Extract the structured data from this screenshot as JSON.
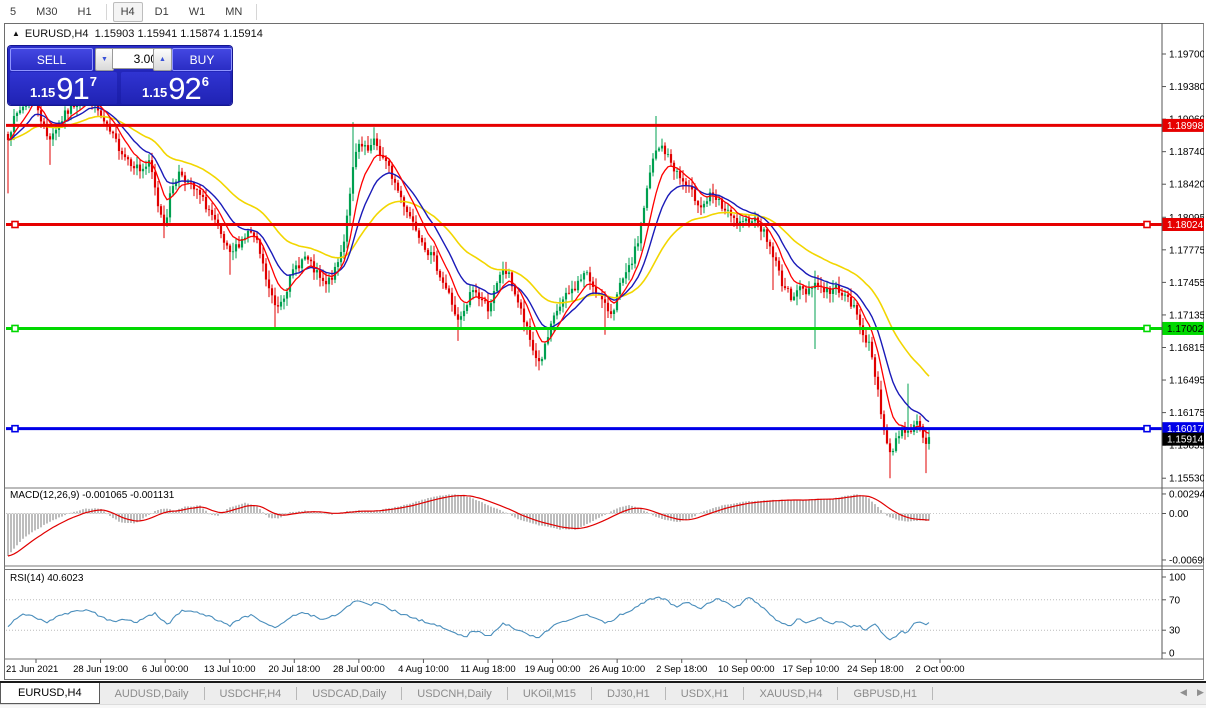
{
  "toolbar": {
    "groups": [
      [
        "5",
        "M30",
        "H1"
      ],
      [
        "H4",
        "D1",
        "W1",
        "MN"
      ]
    ],
    "selected": "H4"
  },
  "window": {
    "title_marker": "▲",
    "title_symbol": "EURUSD,H4",
    "title_ohlc": "1.15903 1.15941 1.15874 1.15914"
  },
  "trade_panel": {
    "sell_label": "SELL",
    "buy_label": "BUY",
    "volume": "3.00",
    "bid": {
      "small": "1.15",
      "big": "91",
      "sup": "7"
    },
    "ask": {
      "small": "1.15",
      "big": "92",
      "sup": "6"
    },
    "icons": {
      "spin_down": "▼",
      "spin_up": "▲"
    }
  },
  "tabs": {
    "active": "EURUSD,H4",
    "inactive": [
      "AUDUSD,Daily",
      "USDCHF,H4",
      "USDCAD,Daily",
      "USDCNH,Daily",
      "UKOil,M15",
      "DJ30,H1",
      "USDX,H1",
      "XAUUSD,H4",
      "GBPUSD,H1"
    ],
    "scroll_left_icon": "◀",
    "scroll_right_icon": "▶"
  },
  "price_axis": {
    "ticks": [
      "1.19700",
      "1.19380",
      "1.19060",
      "1.18740",
      "1.18420",
      "1.18095",
      "1.17775",
      "1.17455",
      "1.17135",
      "1.16815",
      "1.16495",
      "1.16175",
      "1.15855",
      "1.15530"
    ],
    "badges": [
      {
        "text": "1.18998",
        "price": 1.18998,
        "bg": "#e60000",
        "fg": "#ffffff"
      },
      {
        "text": "1.18024",
        "price": 1.18024,
        "bg": "#e60000",
        "fg": "#ffffff"
      },
      {
        "text": "1.17002",
        "price": 1.17002,
        "bg": "#00d800",
        "fg": "#000000"
      },
      {
        "text": "1.16017",
        "price": 1.16017,
        "bg": "#0000e8",
        "fg": "#ffffff"
      },
      {
        "text": "1.15914",
        "price": 1.15914,
        "bg": "#000000",
        "fg": "#ffffff"
      }
    ]
  },
  "macd_panel": {
    "label": "MACD(12,26,9) -0.001065 -0.001131",
    "axis": [
      "0.00294",
      "0.00",
      "-0.00699"
    ],
    "axis_values": [
      0.00294,
      0.0,
      -0.00699
    ]
  },
  "rsi_panel": {
    "label": "RSI(14) 40.6023",
    "axis": [
      "100",
      "70",
      "30",
      "0"
    ],
    "axis_values": [
      100,
      70,
      30,
      0
    ],
    "levels": [
      70,
      30
    ]
  },
  "time_axis": {
    "labels": [
      "21 Jun 2021",
      "28 Jun 19:00",
      "6 Jul 00:00",
      "13 Jul 10:00",
      "20 Jul 18:00",
      "28 Jul 00:00",
      "4 Aug 10:00",
      "11 Aug 18:00",
      "19 Aug 00:00",
      "26 Aug 10:00",
      "2 Sep 18:00",
      "10 Sep 00:00",
      "17 Sep 10:00",
      "24 Sep 18:00",
      "2 Oct 00:00"
    ]
  },
  "chart_data": {
    "type": "candlestick",
    "symbol": "EURUSD",
    "timeframe": "H4",
    "current_ohlc": {
      "open": 1.15903,
      "high": 1.15941,
      "low": 1.15874,
      "close": 1.15914
    },
    "y_range": [
      1.15443,
      1.19926
    ],
    "horizontal_lines": [
      {
        "price": 1.18998,
        "color": "#e60000",
        "width": 3,
        "handles": []
      },
      {
        "price": 1.18024,
        "color": "#e60000",
        "width": 3,
        "handles": [
          "left",
          "right"
        ]
      },
      {
        "price": 1.17002,
        "color": "#00d800",
        "width": 3,
        "handles": [
          "left",
          "right"
        ]
      },
      {
        "price": 1.16017,
        "color": "#0000e8",
        "width": 3,
        "handles": [
          "left",
          "right"
        ]
      }
    ],
    "colors": {
      "bull": "#00a050",
      "bear": "#e00000",
      "ma_fast": "#ff0000",
      "ma_mid": "#1a1ab8",
      "ma_slow": "#f2d600",
      "macd_hist": "#bdbdbd",
      "macd_signal": "#e00000",
      "rsi": "#4a8ebc"
    },
    "moving_average_periods": {
      "fast": 8,
      "mid": 16,
      "slow": 40
    },
    "close_path": [
      [
        0,
        1.1915
      ],
      [
        8,
        1.189
      ],
      [
        15,
        1.1907
      ],
      [
        25,
        1.1922
      ],
      [
        32,
        1.1938
      ],
      [
        40,
        1.191
      ],
      [
        48,
        1.1886
      ],
      [
        55,
        1.1896
      ],
      [
        65,
        1.191
      ],
      [
        75,
        1.1922
      ],
      [
        88,
        1.193
      ],
      [
        95,
        1.192
      ],
      [
        105,
        1.19
      ],
      [
        115,
        1.1885
      ],
      [
        125,
        1.187
      ],
      [
        140,
        1.1856
      ],
      [
        150,
        1.1862
      ],
      [
        158,
        1.1822
      ],
      [
        165,
        1.1802
      ],
      [
        172,
        1.184
      ],
      [
        180,
        1.1855
      ],
      [
        190,
        1.1841
      ],
      [
        200,
        1.183
      ],
      [
        210,
        1.1815
      ],
      [
        220,
        1.1792
      ],
      [
        230,
        1.1771
      ],
      [
        240,
        1.1786
      ],
      [
        250,
        1.1796
      ],
      [
        258,
        1.1781
      ],
      [
        268,
        1.1741
      ],
      [
        276,
        1.172
      ],
      [
        285,
        1.1736
      ],
      [
        295,
        1.176
      ],
      [
        305,
        1.177
      ],
      [
        315,
        1.1756
      ],
      [
        325,
        1.1741
      ],
      [
        335,
        1.1756
      ],
      [
        343,
        1.1781
      ],
      [
        352,
        1.1851
      ],
      [
        358,
        1.188
      ],
      [
        368,
        1.1874
      ],
      [
        375,
        1.1884
      ],
      [
        382,
        1.1869
      ],
      [
        390,
        1.1855
      ],
      [
        400,
        1.1831
      ],
      [
        410,
        1.1811
      ],
      [
        418,
        1.1796
      ],
      [
        428,
        1.1776
      ],
      [
        435,
        1.1766
      ],
      [
        443,
        1.1746
      ],
      [
        450,
        1.1731
      ],
      [
        458,
        1.1706
      ],
      [
        465,
        1.1716
      ],
      [
        472,
        1.174
      ],
      [
        480,
        1.173
      ],
      [
        488,
        1.1721
      ],
      [
        495,
        1.1736
      ],
      [
        503,
        1.1759
      ],
      [
        510,
        1.175
      ],
      [
        518,
        1.1726
      ],
      [
        526,
        1.1701
      ],
      [
        534,
        1.1676
      ],
      [
        540,
        1.1666
      ],
      [
        548,
        1.1691
      ],
      [
        556,
        1.1716
      ],
      [
        565,
        1.173
      ],
      [
        575,
        1.1741
      ],
      [
        585,
        1.1755
      ],
      [
        595,
        1.174
      ],
      [
        605,
        1.1721
      ],
      [
        612,
        1.1716
      ],
      [
        620,
        1.1741
      ],
      [
        630,
        1.176
      ],
      [
        638,
        1.1786
      ],
      [
        646,
        1.1831
      ],
      [
        654,
        1.1871
      ],
      [
        662,
        1.1879
      ],
      [
        670,
        1.1865
      ],
      [
        678,
        1.1851
      ],
      [
        686,
        1.184
      ],
      [
        694,
        1.183
      ],
      [
        702,
        1.182
      ],
      [
        710,
        1.183
      ],
      [
        718,
        1.1825
      ],
      [
        726,
        1.1815
      ],
      [
        734,
        1.1806
      ],
      [
        742,
        1.18
      ],
      [
        750,
        1.181
      ],
      [
        758,
        1.1805
      ],
      [
        766,
        1.179
      ],
      [
        774,
        1.177
      ],
      [
        782,
        1.1746
      ],
      [
        790,
        1.1731
      ],
      [
        798,
        1.174
      ],
      [
        806,
        1.1736
      ],
      [
        814,
        1.1746
      ],
      [
        822,
        1.174
      ],
      [
        830,
        1.1736
      ],
      [
        838,
        1.1741
      ],
      [
        846,
        1.173
      ],
      [
        854,
        1.172
      ],
      [
        862,
        1.17
      ],
      [
        870,
        1.168
      ],
      [
        878,
        1.164
      ],
      [
        884,
        1.16
      ],
      [
        890,
        1.1576
      ],
      [
        896,
        1.159
      ],
      [
        902,
        1.1605
      ],
      [
        908,
        1.1596
      ],
      [
        914,
        1.161
      ],
      [
        920,
        1.16
      ],
      [
        926,
        1.1586
      ],
      [
        929,
        1.15914
      ]
    ],
    "wick_spikes": [
      {
        "x": 8,
        "low": 1.1833
      },
      {
        "x": 50,
        "low": 1.1861
      },
      {
        "x": 165,
        "low": 1.1789
      },
      {
        "x": 230,
        "low": 1.1753
      },
      {
        "x": 276,
        "low": 1.1701
      },
      {
        "x": 352,
        "high": 1.1903
      },
      {
        "x": 375,
        "high": 1.1898
      },
      {
        "x": 458,
        "low": 1.1688
      },
      {
        "x": 540,
        "low": 1.1659
      },
      {
        "x": 605,
        "low": 1.1694
      },
      {
        "x": 657,
        "high": 1.1909
      },
      {
        "x": 774,
        "low": 1.1738
      },
      {
        "x": 814,
        "low": 1.168
      },
      {
        "x": 814,
        "high": 1.1757
      },
      {
        "x": 890,
        "low": 1.1553
      },
      {
        "x": 908,
        "high": 1.1646
      },
      {
        "x": 926,
        "low": 1.1558
      }
    ],
    "macd_path": [
      [
        0,
        -0.0078
      ],
      [
        10,
        -0.006
      ],
      [
        25,
        -0.0035
      ],
      [
        50,
        -0.0012
      ],
      [
        69,
        0
      ],
      [
        85,
        0.0007
      ],
      [
        100,
        0.0008
      ],
      [
        108,
        -0.0002
      ],
      [
        120,
        -0.0013
      ],
      [
        135,
        -0.0015
      ],
      [
        146,
        -0.0005
      ],
      [
        155,
        0.0004
      ],
      [
        165,
        0.0008
      ],
      [
        175,
        0.0004
      ],
      [
        185,
        0.001
      ],
      [
        200,
        0.0012
      ],
      [
        210,
        -0.0002
      ],
      [
        218,
        -0.0004
      ],
      [
        228,
        0.0008
      ],
      [
        245,
        0.0016
      ],
      [
        258,
        0.001
      ],
      [
        268,
        -0.0006
      ],
      [
        278,
        -0.0008
      ],
      [
        290,
        0.0002
      ],
      [
        305,
        0.0004
      ],
      [
        320,
        0.0002
      ],
      [
        330,
        -0.0002
      ],
      [
        345,
        0.0003
      ],
      [
        360,
        0.0005
      ],
      [
        375,
        0.0004
      ],
      [
        390,
        0.0008
      ],
      [
        410,
        0.0015
      ],
      [
        430,
        0.0024
      ],
      [
        450,
        0.0029
      ],
      [
        465,
        0.0027
      ],
      [
        480,
        0.0018
      ],
      [
        495,
        0.0008
      ],
      [
        508,
        0
      ],
      [
        520,
        -0.001
      ],
      [
        540,
        -0.0018
      ],
      [
        560,
        -0.0024
      ],
      [
        575,
        -0.0024
      ],
      [
        590,
        -0.0014
      ],
      [
        602,
        -0.0004
      ],
      [
        615,
        0.0007
      ],
      [
        628,
        0.0013
      ],
      [
        640,
        0.0008
      ],
      [
        652,
        -0.0002
      ],
      [
        665,
        -0.001
      ],
      [
        678,
        -0.0013
      ],
      [
        690,
        -0.0008
      ],
      [
        700,
        0.0001
      ],
      [
        712,
        0.0008
      ],
      [
        725,
        0.0013
      ],
      [
        740,
        0.0017
      ],
      [
        755,
        0.0019
      ],
      [
        770,
        0.002
      ],
      [
        785,
        0.0021
      ],
      [
        800,
        0.002
      ],
      [
        815,
        0.0022
      ],
      [
        830,
        0.0022
      ],
      [
        845,
        0.0026
      ],
      [
        857,
        0.0029
      ],
      [
        868,
        0.0024
      ],
      [
        878,
        0.001
      ],
      [
        886,
        -0.0002
      ],
      [
        895,
        -0.0009
      ],
      [
        905,
        -0.0012
      ],
      [
        915,
        -0.0011
      ],
      [
        922,
        -0.00107
      ],
      [
        929,
        -0.001065
      ]
    ],
    "rsi_path": [
      [
        0,
        22
      ],
      [
        8,
        35
      ],
      [
        18,
        48
      ],
      [
        28,
        52
      ],
      [
        38,
        45
      ],
      [
        48,
        40
      ],
      [
        58,
        50
      ],
      [
        68,
        52
      ],
      [
        78,
        55
      ],
      [
        88,
        57
      ],
      [
        95,
        52
      ],
      [
        105,
        45
      ],
      [
        115,
        42
      ],
      [
        125,
        44
      ],
      [
        135,
        40
      ],
      [
        145,
        46
      ],
      [
        155,
        52
      ],
      [
        162,
        42
      ],
      [
        168,
        38
      ],
      [
        175,
        48
      ],
      [
        182,
        55
      ],
      [
        190,
        57
      ],
      [
        200,
        52
      ],
      [
        210,
        48
      ],
      [
        220,
        42
      ],
      [
        230,
        36
      ],
      [
        240,
        45
      ],
      [
        250,
        50
      ],
      [
        258,
        45
      ],
      [
        268,
        38
      ],
      [
        276,
        33
      ],
      [
        285,
        42
      ],
      [
        295,
        50
      ],
      [
        305,
        53
      ],
      [
        315,
        48
      ],
      [
        325,
        44
      ],
      [
        335,
        50
      ],
      [
        343,
        56
      ],
      [
        352,
        65
      ],
      [
        358,
        70
      ],
      [
        365,
        66
      ],
      [
        372,
        62
      ],
      [
        375,
        68
      ],
      [
        382,
        63
      ],
      [
        390,
        58
      ],
      [
        400,
        52
      ],
      [
        410,
        48
      ],
      [
        418,
        44
      ],
      [
        428,
        40
      ],
      [
        435,
        38
      ],
      [
        443,
        34
      ],
      [
        450,
        30
      ],
      [
        458,
        24
      ],
      [
        462,
        22
      ],
      [
        468,
        23
      ],
      [
        472,
        30
      ],
      [
        480,
        28
      ],
      [
        485,
        24
      ],
      [
        490,
        22
      ],
      [
        495,
        28
      ],
      [
        503,
        38
      ],
      [
        510,
        36
      ],
      [
        518,
        30
      ],
      [
        526,
        26
      ],
      [
        534,
        22
      ],
      [
        540,
        21
      ],
      [
        548,
        30
      ],
      [
        556,
        38
      ],
      [
        565,
        42
      ],
      [
        575,
        46
      ],
      [
        585,
        52
      ],
      [
        595,
        46
      ],
      [
        605,
        40
      ],
      [
        612,
        42
      ],
      [
        620,
        50
      ],
      [
        630,
        56
      ],
      [
        638,
        62
      ],
      [
        646,
        68
      ],
      [
        652,
        71
      ],
      [
        657,
        74
      ],
      [
        662,
        72
      ],
      [
        668,
        68
      ],
      [
        672,
        64
      ],
      [
        678,
        60
      ],
      [
        683,
        65
      ],
      [
        688,
        67
      ],
      [
        694,
        62
      ],
      [
        700,
        58
      ],
      [
        706,
        63
      ],
      [
        712,
        68
      ],
      [
        718,
        72
      ],
      [
        722,
        69
      ],
      [
        728,
        65
      ],
      [
        734,
        60
      ],
      [
        740,
        64
      ],
      [
        745,
        70
      ],
      [
        750,
        73
      ],
      [
        755,
        68
      ],
      [
        760,
        62
      ],
      [
        766,
        56
      ],
      [
        772,
        48
      ],
      [
        778,
        42
      ],
      [
        782,
        38
      ],
      [
        790,
        36
      ],
      [
        795,
        42
      ],
      [
        800,
        45
      ],
      [
        806,
        40
      ],
      [
        814,
        44
      ],
      [
        820,
        47
      ],
      [
        826,
        42
      ],
      [
        832,
        38
      ],
      [
        838,
        42
      ],
      [
        846,
        38
      ],
      [
        852,
        34
      ],
      [
        858,
        37
      ],
      [
        862,
        33
      ],
      [
        866,
        30
      ],
      [
        870,
        35
      ],
      [
        874,
        40
      ],
      [
        878,
        34
      ],
      [
        882,
        26
      ],
      [
        886,
        20
      ],
      [
        890,
        18
      ],
      [
        894,
        20
      ],
      [
        898,
        24
      ],
      [
        902,
        28
      ],
      [
        906,
        25
      ],
      [
        910,
        30
      ],
      [
        914,
        38
      ],
      [
        918,
        42
      ],
      [
        922,
        40
      ],
      [
        926,
        38
      ],
      [
        929,
        40.6
      ]
    ]
  }
}
